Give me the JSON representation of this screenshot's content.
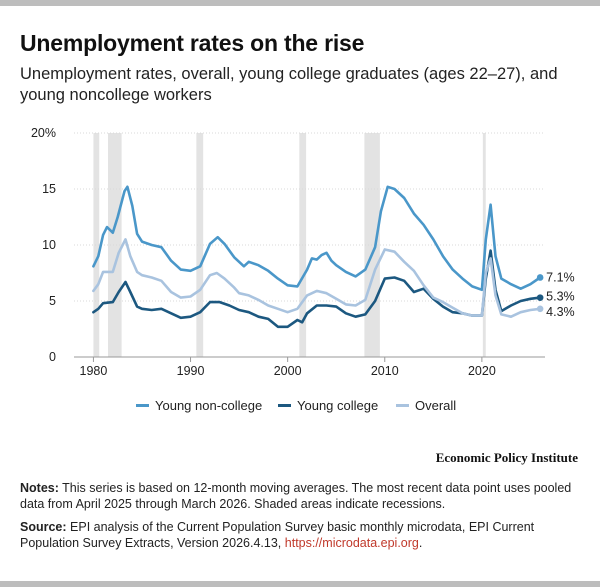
{
  "title": "Unemployment rates on the rise",
  "subtitle": "Unemployment rates, overall, young college graduates (ages 22–27), and young noncollege workers",
  "brand": "Economic Policy Institute",
  "notes": {
    "label": "Notes:",
    "text": "This series is based on 12-month moving averages. The most recent data point uses pooled data from April 2025 through March 2026. Shaded areas indicate recessions."
  },
  "source": {
    "label": "Source:",
    "text": "EPI analysis of the Current Population Survey basic monthly microdata, EPI Current Population Survey Extracts, Version 2026.4.13,",
    "link": "https://microdata.epi.org",
    "end": "."
  },
  "chart_data": {
    "type": "line",
    "xlim": [
      1978,
      2026.5
    ],
    "ylim": [
      0,
      20
    ],
    "xticks": [
      1980,
      1990,
      2000,
      2010,
      2020
    ],
    "yticks": [
      0,
      5,
      10,
      15,
      20
    ],
    "ytick_labels": [
      "0",
      "5",
      "10",
      "15",
      "20%"
    ],
    "grid": "horizontal",
    "legend_position": "bottom",
    "recessions": [
      [
        1980.0,
        1980.6
      ],
      [
        1981.5,
        1982.9
      ],
      [
        1990.6,
        1991.3
      ],
      [
        2001.2,
        2001.9
      ],
      [
        2007.9,
        2009.5
      ],
      [
        2020.1,
        2020.4
      ]
    ],
    "series": [
      {
        "name": "Young non-college",
        "color": "#4a97c9",
        "end_label": "7.1%",
        "points": [
          [
            1980,
            8.1
          ],
          [
            1980.5,
            9.0
          ],
          [
            1981,
            10.9
          ],
          [
            1981.4,
            11.6
          ],
          [
            1982,
            11.1
          ],
          [
            1982.5,
            12.5
          ],
          [
            1983.2,
            14.8
          ],
          [
            1983.5,
            15.2
          ],
          [
            1984,
            13.5
          ],
          [
            1984.5,
            11.0
          ],
          [
            1985,
            10.3
          ],
          [
            1986,
            10.0
          ],
          [
            1987,
            9.8
          ],
          [
            1988,
            8.6
          ],
          [
            1989,
            7.8
          ],
          [
            1990,
            7.7
          ],
          [
            1991,
            8.1
          ],
          [
            1992,
            10.1
          ],
          [
            1992.8,
            10.7
          ],
          [
            1993.5,
            10.1
          ],
          [
            1994.5,
            8.9
          ],
          [
            1995.5,
            8.1
          ],
          [
            1996,
            8.5
          ],
          [
            1997,
            8.2
          ],
          [
            1998,
            7.7
          ],
          [
            1999,
            7.0
          ],
          [
            2000,
            6.4
          ],
          [
            2001,
            6.3
          ],
          [
            2002,
            7.8
          ],
          [
            2002.5,
            8.8
          ],
          [
            2003,
            8.7
          ],
          [
            2003.5,
            9.1
          ],
          [
            2004,
            9.3
          ],
          [
            2004.5,
            8.6
          ],
          [
            2005,
            8.2
          ],
          [
            2006,
            7.6
          ],
          [
            2007,
            7.2
          ],
          [
            2008,
            7.8
          ],
          [
            2009,
            9.8
          ],
          [
            2009.6,
            13.0
          ],
          [
            2010.3,
            15.2
          ],
          [
            2011,
            15.0
          ],
          [
            2012,
            14.2
          ],
          [
            2013,
            12.8
          ],
          [
            2014,
            11.8
          ],
          [
            2015,
            10.5
          ],
          [
            2016,
            9.0
          ],
          [
            2017,
            7.8
          ],
          [
            2018,
            7.0
          ],
          [
            2019,
            6.3
          ],
          [
            2020,
            6.0
          ],
          [
            2020.4,
            10.5
          ],
          [
            2020.9,
            13.6
          ],
          [
            2021.4,
            9.0
          ],
          [
            2022,
            7.0
          ],
          [
            2023,
            6.5
          ],
          [
            2024,
            6.1
          ],
          [
            2025,
            6.5
          ],
          [
            2026,
            7.1
          ]
        ]
      },
      {
        "name": "Young college",
        "color": "#1c5880",
        "end_label": "5.3%",
        "points": [
          [
            1980,
            4.0
          ],
          [
            1980.5,
            4.3
          ],
          [
            1981,
            4.8
          ],
          [
            1982,
            4.9
          ],
          [
            1982.6,
            5.8
          ],
          [
            1983.3,
            6.7
          ],
          [
            1983.8,
            5.8
          ],
          [
            1984.5,
            4.5
          ],
          [
            1985,
            4.3
          ],
          [
            1986,
            4.2
          ],
          [
            1987,
            4.3
          ],
          [
            1988,
            3.9
          ],
          [
            1989,
            3.5
          ],
          [
            1990,
            3.6
          ],
          [
            1991,
            4.0
          ],
          [
            1992,
            4.9
          ],
          [
            1993,
            4.9
          ],
          [
            1994,
            4.6
          ],
          [
            1995,
            4.2
          ],
          [
            1996,
            4.0
          ],
          [
            1997,
            3.6
          ],
          [
            1998,
            3.4
          ],
          [
            1999,
            2.7
          ],
          [
            2000,
            2.7
          ],
          [
            2001,
            3.3
          ],
          [
            2001.5,
            3.1
          ],
          [
            2002,
            3.9
          ],
          [
            2003,
            4.6
          ],
          [
            2004,
            4.6
          ],
          [
            2005,
            4.5
          ],
          [
            2006,
            3.9
          ],
          [
            2007,
            3.6
          ],
          [
            2008,
            3.8
          ],
          [
            2009,
            5.0
          ],
          [
            2010,
            7.0
          ],
          [
            2011,
            7.1
          ],
          [
            2012,
            6.8
          ],
          [
            2013,
            5.8
          ],
          [
            2014,
            6.1
          ],
          [
            2015,
            5.2
          ],
          [
            2016,
            4.5
          ],
          [
            2017,
            4.0
          ],
          [
            2018,
            3.9
          ],
          [
            2019,
            3.7
          ],
          [
            2020,
            3.7
          ],
          [
            2020.4,
            7.0
          ],
          [
            2020.9,
            9.5
          ],
          [
            2021.4,
            6.0
          ],
          [
            2022,
            4.1
          ],
          [
            2023,
            4.6
          ],
          [
            2024,
            5.0
          ],
          [
            2025,
            5.2
          ],
          [
            2026,
            5.3
          ]
        ]
      },
      {
        "name": "Overall",
        "color": "#a9c3df",
        "end_label": "4.3%",
        "points": [
          [
            1980,
            5.9
          ],
          [
            1980.5,
            6.5
          ],
          [
            1981,
            7.6
          ],
          [
            1982,
            7.6
          ],
          [
            1982.6,
            9.3
          ],
          [
            1983.3,
            10.5
          ],
          [
            1983.8,
            9.0
          ],
          [
            1984.5,
            7.6
          ],
          [
            1985,
            7.3
          ],
          [
            1986,
            7.1
          ],
          [
            1987,
            6.8
          ],
          [
            1988,
            5.8
          ],
          [
            1989,
            5.3
          ],
          [
            1990,
            5.4
          ],
          [
            1991,
            6.0
          ],
          [
            1992,
            7.3
          ],
          [
            1992.7,
            7.5
          ],
          [
            1993.5,
            7.0
          ],
          [
            1994.5,
            6.2
          ],
          [
            1995,
            5.7
          ],
          [
            1996,
            5.5
          ],
          [
            1997,
            5.1
          ],
          [
            1998,
            4.6
          ],
          [
            1999,
            4.3
          ],
          [
            2000,
            4.0
          ],
          [
            2001,
            4.3
          ],
          [
            2002,
            5.5
          ],
          [
            2003,
            5.9
          ],
          [
            2004,
            5.7
          ],
          [
            2005,
            5.2
          ],
          [
            2006,
            4.7
          ],
          [
            2007,
            4.6
          ],
          [
            2008,
            5.1
          ],
          [
            2009,
            7.8
          ],
          [
            2010,
            9.6
          ],
          [
            2011,
            9.4
          ],
          [
            2012,
            8.5
          ],
          [
            2013,
            7.7
          ],
          [
            2014,
            6.4
          ],
          [
            2015,
            5.3
          ],
          [
            2016,
            4.9
          ],
          [
            2017,
            4.4
          ],
          [
            2018,
            3.9
          ],
          [
            2019,
            3.7
          ],
          [
            2020,
            3.7
          ],
          [
            2020.4,
            7.5
          ],
          [
            2020.9,
            8.8
          ],
          [
            2021.4,
            5.5
          ],
          [
            2022,
            3.8
          ],
          [
            2023,
            3.6
          ],
          [
            2024,
            4.0
          ],
          [
            2025,
            4.2
          ],
          [
            2026,
            4.3
          ]
        ]
      }
    ]
  }
}
